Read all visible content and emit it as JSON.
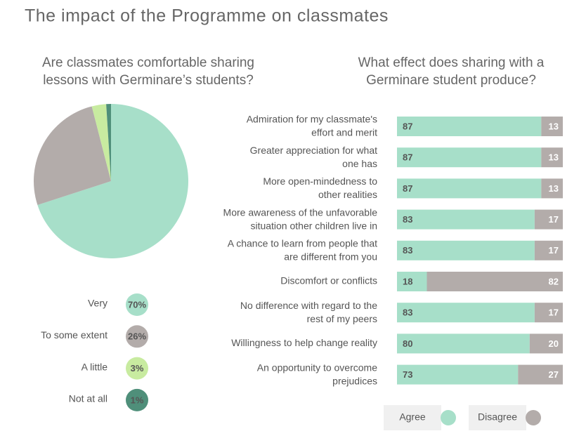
{
  "title": "The impact of the Programme on  classmates",
  "chart_data": [
    {
      "type": "pie",
      "title": [
        "Are classmates comfortable sharing",
        "lessons with Germinare’s students?"
      ],
      "categories": [
        "Very",
        "To some extent",
        "A little",
        "Not at all"
      ],
      "values": [
        70,
        26,
        3,
        1
      ],
      "value_labels": [
        "70%",
        "26%",
        "3%",
        "1%"
      ],
      "colors": [
        "#a7dfc9",
        "#b3acaa",
        "#c8eba0",
        "#4f8f7a"
      ]
    },
    {
      "type": "stacked-bar",
      "title": [
        "What effect does sharing with a",
        "Germinare student produce?"
      ],
      "categories": [
        [
          "Admiration for my classmate's",
          "effort and merit"
        ],
        [
          "Greater appreciation for what",
          "one has"
        ],
        [
          "More open-mindedness to",
          "other realities"
        ],
        [
          "More awareness of the unfavorable",
          "situation other children live in"
        ],
        [
          "A chance to learn from people that",
          "are different from you"
        ],
        [
          "Discomfort or conflicts"
        ],
        [
          "No difference with regard to the",
          "rest of my peers"
        ],
        [
          "Willingness to help change reality"
        ],
        [
          "An opportunity to overcome",
          "prejudices"
        ]
      ],
      "xlim": [
        0,
        100
      ],
      "series": [
        {
          "name": "Agree",
          "color": "#a7dfc9",
          "values": [
            87,
            87,
            87,
            83,
            83,
            18,
            83,
            80,
            73
          ]
        },
        {
          "name": "Disagree",
          "color": "#b3acaa",
          "values": [
            13,
            13,
            13,
            17,
            17,
            82,
            17,
            20,
            27
          ]
        }
      ]
    }
  ]
}
